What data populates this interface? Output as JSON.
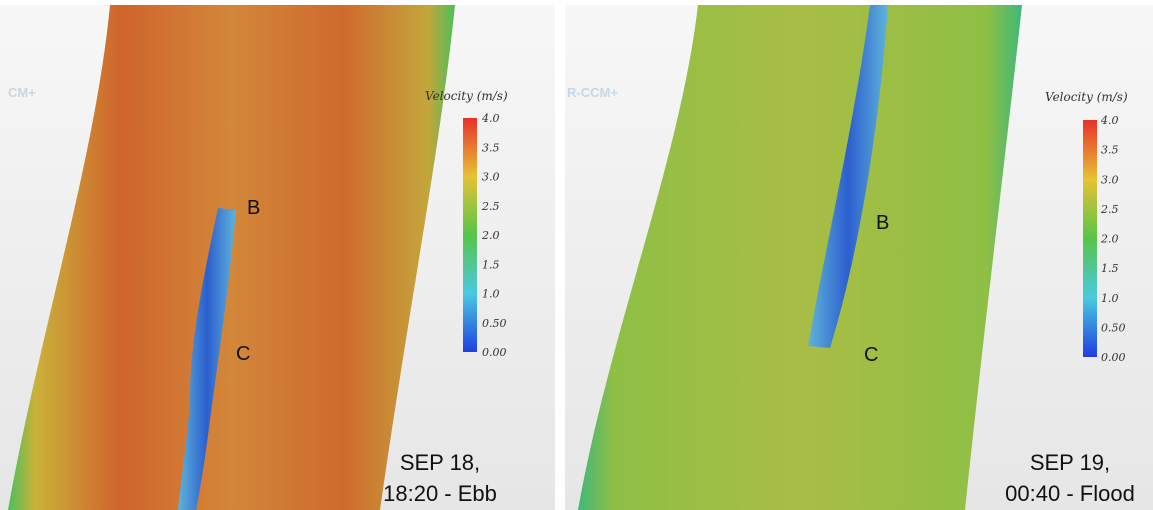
{
  "panels": [
    {
      "watermark": "CM+",
      "legend_title": "Velocity (m/s)",
      "legend_ticks": [
        "4.0",
        "3.5",
        "3.0",
        "2.5",
        "2.0",
        "1.5",
        "1.0",
        "0.50",
        "0.00"
      ],
      "labels": [
        "B",
        "C"
      ],
      "caption": [
        "SEP 18,",
        "18:20 - Ebb"
      ]
    },
    {
      "watermark": "R-CCM+",
      "legend_title": "Velocity (m/s)",
      "legend_ticks": [
        "4.0",
        "3.5",
        "3.0",
        "2.5",
        "2.0",
        "1.5",
        "1.0",
        "0.50",
        "0.00"
      ],
      "labels": [
        "B",
        "C"
      ],
      "caption": [
        "SEP 19,",
        "00:40 - Flood"
      ]
    }
  ]
}
